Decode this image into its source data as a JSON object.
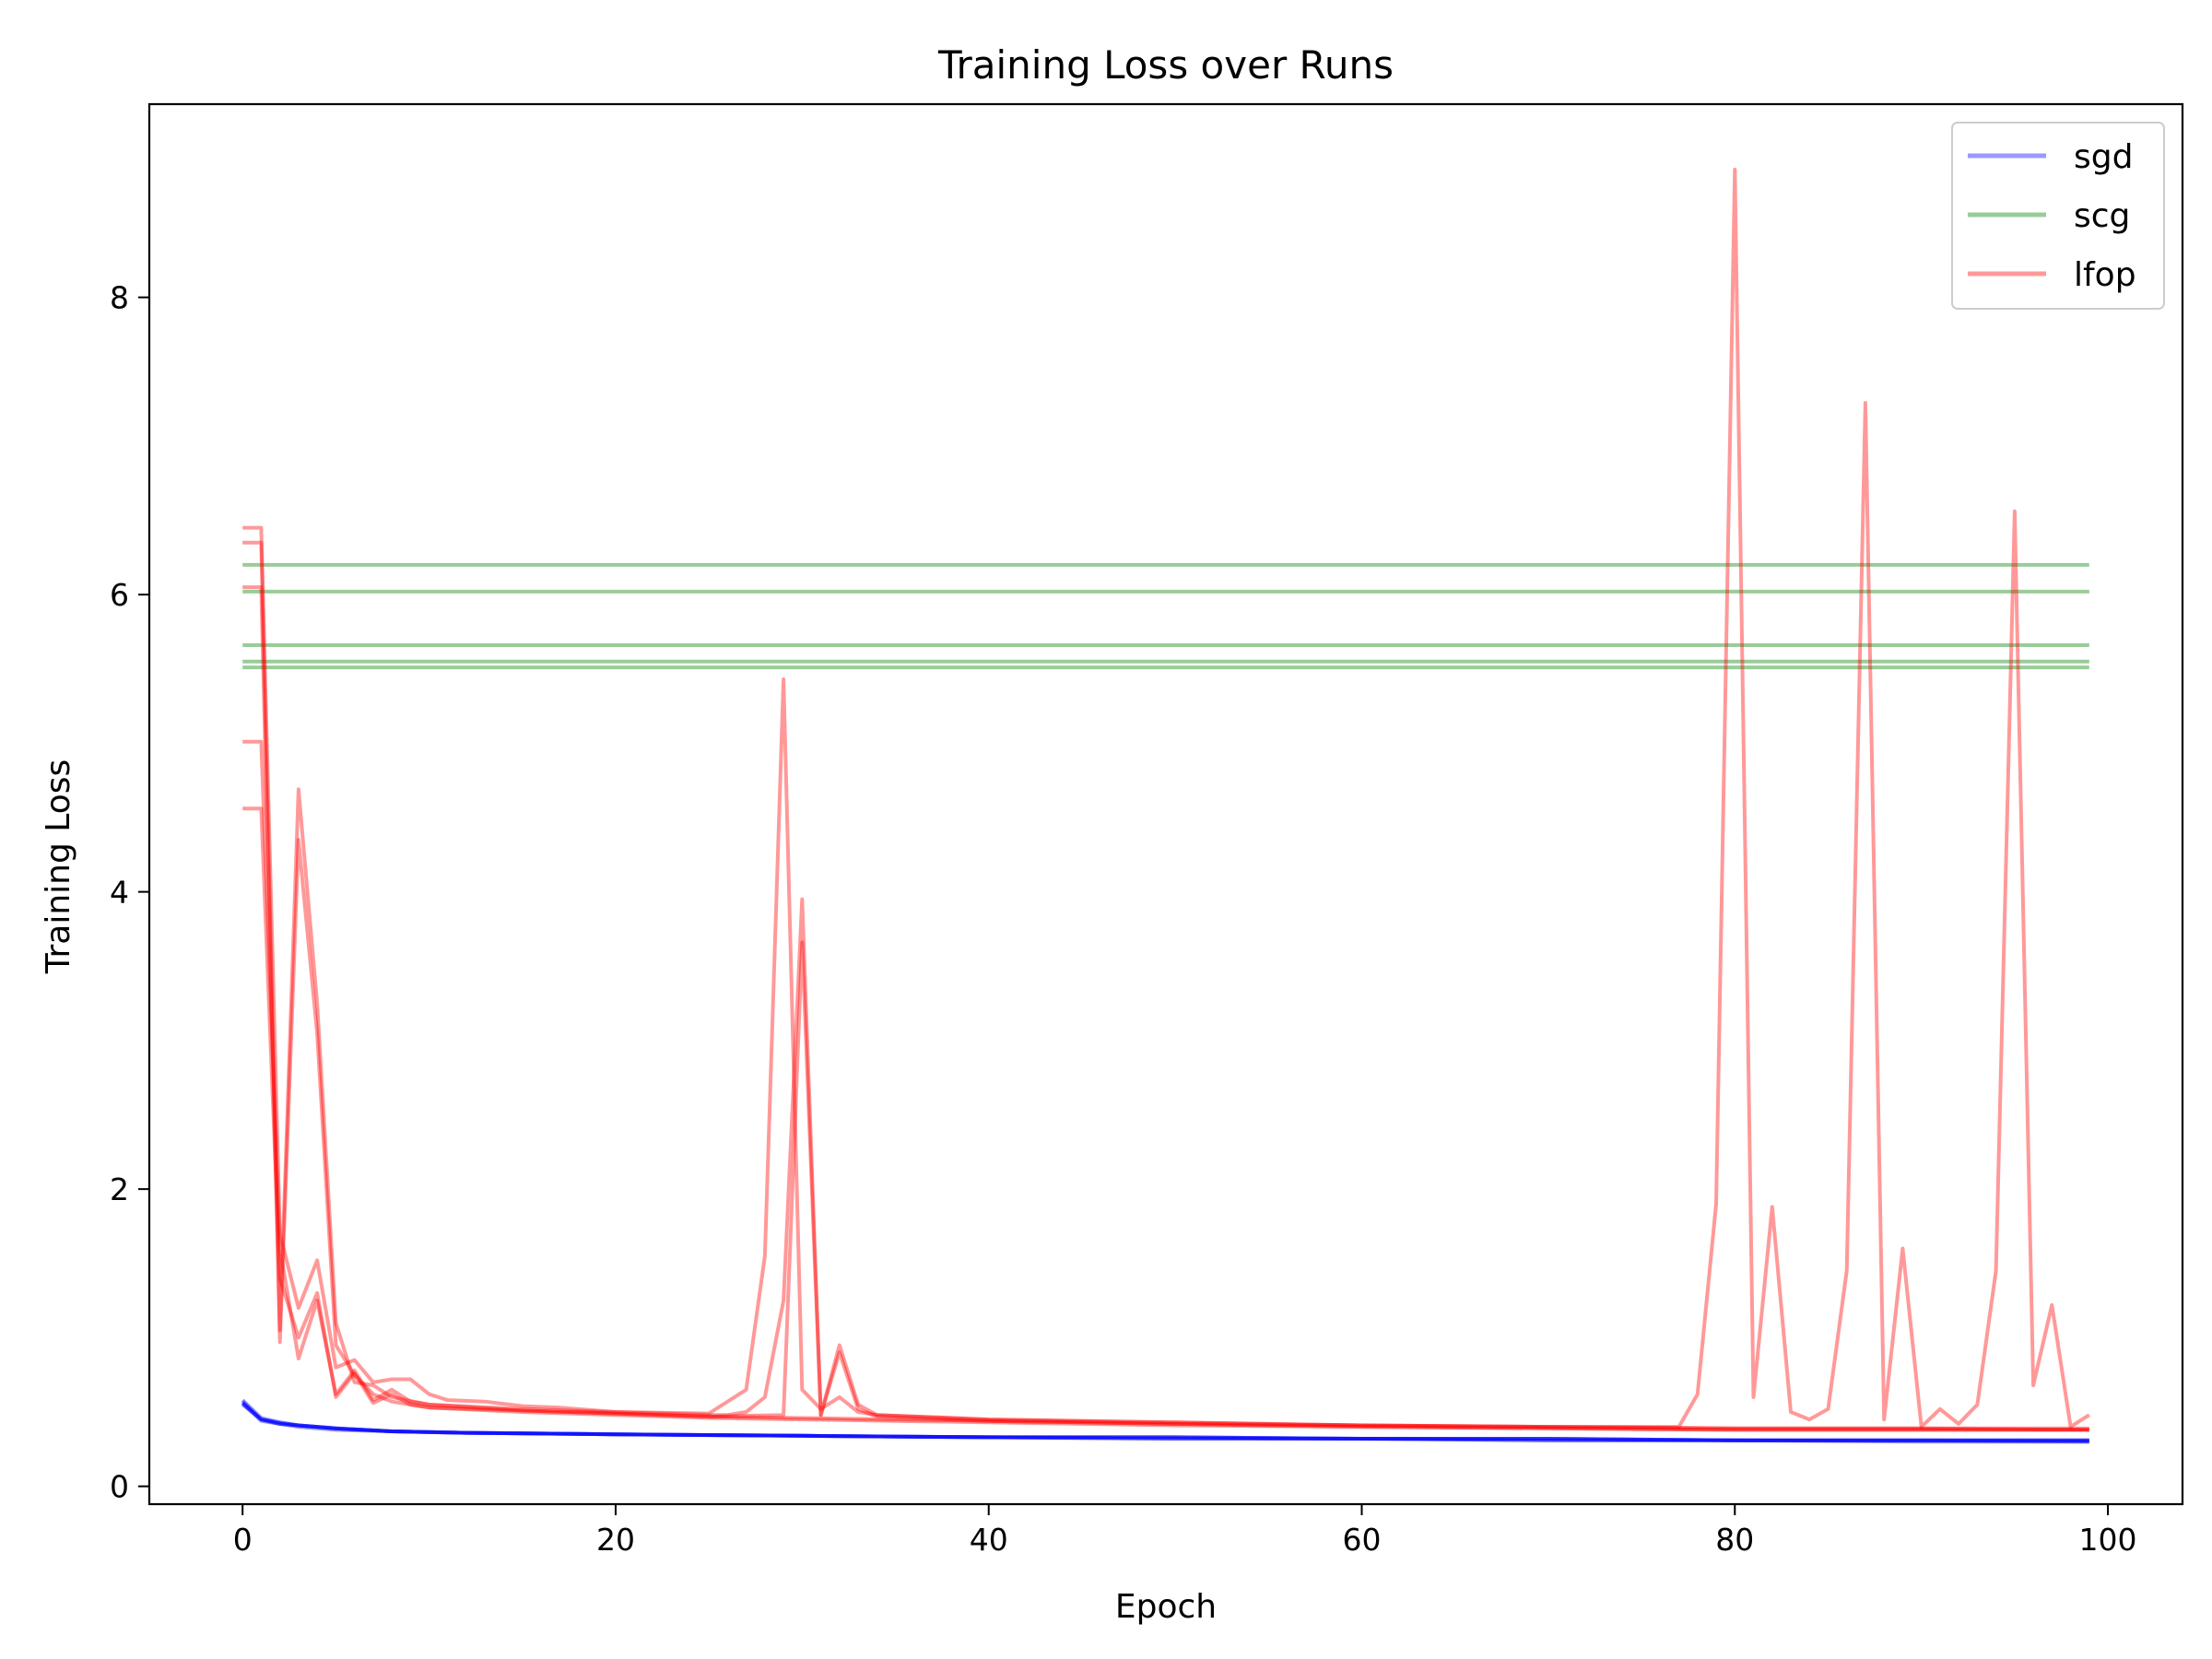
{
  "chart_data": {
    "type": "line",
    "title": "Training Loss over Runs",
    "xlabel": "Epoch",
    "ylabel": "Training Loss",
    "xlim": [
      -5,
      104
    ],
    "ylim": [
      -0.12,
      9.3
    ],
    "xticks": [
      0,
      20,
      40,
      60,
      80,
      100
    ],
    "yticks": [
      0,
      2,
      4,
      6,
      8
    ],
    "grid": false,
    "legend_position": "top-right",
    "colors": {
      "sgd": "#0000ff",
      "scg": "#008000",
      "lfop": "#ff0000"
    },
    "legend": [
      "sgd",
      "scg",
      "lfop"
    ],
    "series": [
      {
        "name": "sgd",
        "group": "sgd",
        "x": [
          0,
          1,
          2,
          3,
          5,
          8,
          12,
          20,
          30,
          40,
          50,
          60,
          70,
          80,
          90,
          99
        ],
        "y": [
          0.56,
          0.45,
          0.43,
          0.41,
          0.39,
          0.37,
          0.36,
          0.35,
          0.34,
          0.33,
          0.33,
          0.32,
          0.32,
          0.31,
          0.31,
          0.31
        ]
      },
      {
        "name": "sgd",
        "group": "sgd",
        "x": [
          0,
          1,
          2,
          3,
          5,
          8,
          12,
          20,
          30,
          40,
          50,
          60,
          70,
          80,
          90,
          99
        ],
        "y": [
          0.58,
          0.46,
          0.43,
          0.41,
          0.39,
          0.37,
          0.36,
          0.35,
          0.34,
          0.33,
          0.33,
          0.32,
          0.32,
          0.31,
          0.31,
          0.31
        ]
      },
      {
        "name": "sgd",
        "group": "sgd",
        "x": [
          0,
          1,
          2,
          3,
          5,
          8,
          12,
          20,
          30,
          40,
          50,
          60,
          70,
          80,
          90,
          99
        ],
        "y": [
          0.57,
          0.45,
          0.42,
          0.41,
          0.39,
          0.37,
          0.36,
          0.35,
          0.34,
          0.33,
          0.32,
          0.32,
          0.31,
          0.31,
          0.31,
          0.3
        ]
      },
      {
        "name": "sgd",
        "group": "sgd",
        "x": [
          0,
          1,
          2,
          3,
          5,
          8,
          12,
          20,
          30,
          40,
          50,
          60,
          70,
          80,
          90,
          99
        ],
        "y": [
          0.56,
          0.44,
          0.42,
          0.4,
          0.38,
          0.37,
          0.36,
          0.35,
          0.34,
          0.33,
          0.32,
          0.32,
          0.31,
          0.31,
          0.3,
          0.3
        ]
      },
      {
        "name": "sgd",
        "group": "sgd",
        "x": [
          0,
          1,
          2,
          3,
          5,
          8,
          12,
          20,
          30,
          40,
          50,
          60,
          70,
          80,
          90,
          99
        ],
        "y": [
          0.55,
          0.45,
          0.42,
          0.41,
          0.39,
          0.37,
          0.36,
          0.35,
          0.34,
          0.33,
          0.33,
          0.32,
          0.32,
          0.31,
          0.31,
          0.31
        ]
      },
      {
        "name": "scg",
        "group": "scg",
        "x": [
          0,
          99
        ],
        "y": [
          6.2,
          6.2
        ]
      },
      {
        "name": "scg",
        "group": "scg",
        "x": [
          0,
          99
        ],
        "y": [
          6.02,
          6.02
        ]
      },
      {
        "name": "scg",
        "group": "scg",
        "x": [
          0,
          99
        ],
        "y": [
          5.66,
          5.66
        ]
      },
      {
        "name": "scg",
        "group": "scg",
        "x": [
          0,
          99
        ],
        "y": [
          5.55,
          5.55
        ]
      },
      {
        "name": "scg",
        "group": "scg",
        "x": [
          0,
          99
        ],
        "y": [
          5.51,
          5.51
        ]
      },
      {
        "name": "lfop",
        "group": "lfop",
        "x": [
          0,
          1,
          2,
          3,
          4,
          5,
          6,
          7,
          8,
          9,
          10,
          11,
          13,
          15,
          17,
          20,
          25,
          27,
          28,
          29,
          30,
          31,
          32,
          33,
          34,
          40,
          50,
          60,
          70,
          76,
          77,
          78,
          79,
          80,
          81,
          82,
          83,
          84,
          85,
          86,
          87,
          88,
          89,
          90,
          91,
          92,
          93,
          94,
          95,
          96,
          97,
          98,
          99
        ],
        "y": [
          6.45,
          6.45,
          1.7,
          1.2,
          1.52,
          0.8,
          0.85,
          0.7,
          0.72,
          0.72,
          0.62,
          0.58,
          0.57,
          0.54,
          0.53,
          0.5,
          0.49,
          0.65,
          1.55,
          5.43,
          0.65,
          0.52,
          0.6,
          0.5,
          0.48,
          0.45,
          0.43,
          0.41,
          0.4,
          0.4,
          0.4,
          0.62,
          1.9,
          8.86,
          0.6,
          1.88,
          0.5,
          0.45,
          0.52,
          1.45,
          7.29,
          0.45,
          1.6,
          0.4,
          0.52,
          0.42,
          0.55,
          1.45,
          6.56,
          0.68,
          1.22,
          0.4,
          0.48
        ]
      },
      {
        "name": "lfop",
        "group": "lfop",
        "x": [
          0,
          1,
          2,
          3,
          4,
          5,
          6,
          7,
          8,
          10,
          15,
          20,
          25,
          26,
          27,
          28,
          29,
          30,
          31,
          32,
          33,
          34,
          40,
          50,
          60,
          70,
          80,
          90,
          99
        ],
        "y": [
          6.35,
          6.35,
          1.05,
          4.69,
          3.25,
          1.1,
          0.7,
          0.68,
          0.6,
          0.55,
          0.52,
          0.5,
          0.48,
          0.48,
          0.5,
          0.6,
          1.25,
          3.95,
          0.48,
          0.95,
          0.55,
          0.48,
          0.45,
          0.43,
          0.41,
          0.4,
          0.39,
          0.39,
          0.39
        ]
      },
      {
        "name": "lfop",
        "group": "lfop",
        "x": [
          0,
          1,
          2,
          3,
          4,
          5,
          6,
          7,
          8,
          10,
          15,
          20,
          25,
          29,
          30,
          31,
          32,
          33,
          34,
          40,
          50,
          60,
          70,
          80,
          90,
          99
        ],
        "y": [
          6.05,
          6.05,
          0.97,
          4.35,
          3.05,
          0.95,
          0.75,
          0.62,
          0.57,
          0.53,
          0.51,
          0.49,
          0.47,
          0.48,
          3.66,
          0.48,
          0.9,
          0.52,
          0.47,
          0.44,
          0.42,
          0.4,
          0.39,
          0.38,
          0.38,
          0.38
        ]
      },
      {
        "name": "lfop",
        "group": "lfop",
        "x": [
          0,
          1,
          2,
          3,
          4,
          5,
          6,
          7,
          8,
          9,
          10,
          15,
          20,
          25,
          30,
          35,
          40,
          50,
          60,
          70,
          80,
          90,
          99
        ],
        "y": [
          5.01,
          5.01,
          1.6,
          0.86,
          1.25,
          0.62,
          0.78,
          0.58,
          0.65,
          0.57,
          0.55,
          0.51,
          0.49,
          0.47,
          0.46,
          0.45,
          0.44,
          0.42,
          0.41,
          0.4,
          0.39,
          0.39,
          0.38
        ]
      },
      {
        "name": "lfop",
        "group": "lfop",
        "x": [
          0,
          1,
          2,
          3,
          4,
          5,
          6,
          7,
          8,
          9,
          10,
          15,
          20,
          25,
          30,
          35,
          40,
          50,
          60,
          70,
          80,
          90,
          99
        ],
        "y": [
          4.56,
          4.56,
          1.4,
          1.0,
          1.3,
          0.6,
          0.76,
          0.56,
          0.62,
          0.55,
          0.53,
          0.5,
          0.48,
          0.46,
          0.45,
          0.44,
          0.43,
          0.41,
          0.4,
          0.39,
          0.38,
          0.38,
          0.38
        ]
      }
    ]
  }
}
